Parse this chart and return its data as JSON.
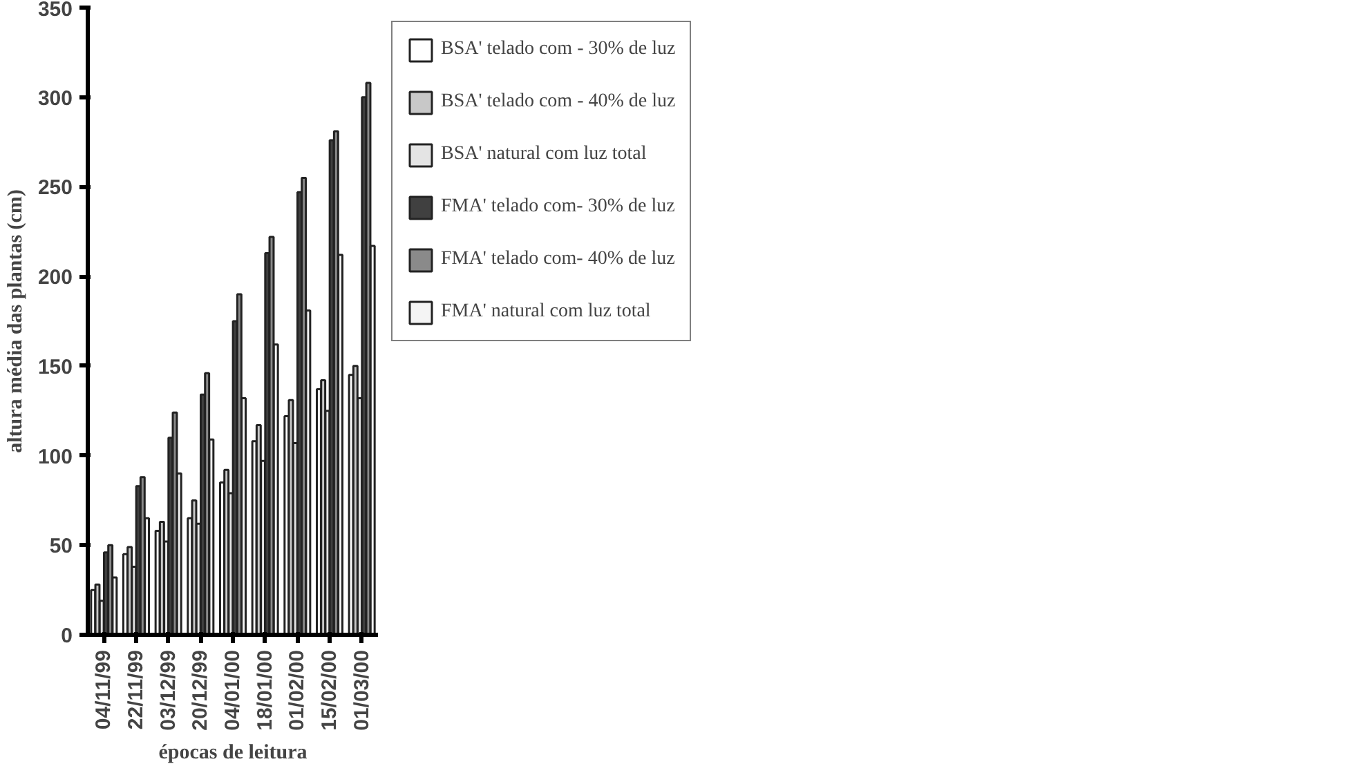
{
  "chart_data": {
    "type": "bar",
    "xlabel": "épocas de leitura",
    "ylabel": "altura média das plantas (cm)",
    "categories": [
      "04/11/99",
      "22/11/99",
      "03/12/99",
      "20/12/99",
      "04/01/00",
      "18/01/00",
      "01/02/00",
      "15/02/00",
      "01/03/00"
    ],
    "series": [
      {
        "name": "BSA' telado com - 30% de luz",
        "color": "#ffffff",
        "values": [
          25,
          45,
          58,
          65,
          85,
          108,
          122,
          137,
          145
        ]
      },
      {
        "name": "BSA' telado com - 40% de luz",
        "color": "#c8c8c8",
        "values": [
          28,
          49,
          63,
          75,
          92,
          117,
          131,
          142,
          150
        ]
      },
      {
        "name": "BSA' natural com luz total",
        "color": "#e4e4e4",
        "values": [
          19,
          38,
          52,
          62,
          79,
          97,
          107,
          125,
          132
        ]
      },
      {
        "name": "FMA' telado com- 30% de luz",
        "color": "#404040",
        "values": [
          46,
          83,
          110,
          134,
          175,
          213,
          247,
          276,
          300
        ]
      },
      {
        "name": "FMA' telado com- 40% de luz",
        "color": "#8a8a8a",
        "values": [
          50,
          88,
          124,
          146,
          190,
          222,
          255,
          281,
          308
        ]
      },
      {
        "name": "FMA' natural com luz total",
        "color": "#f4f4f4",
        "values": [
          32,
          65,
          90,
          109,
          132,
          162,
          181,
          212,
          217
        ]
      }
    ],
    "ylim": [
      0,
      350
    ],
    "yticks": [
      0,
      50,
      100,
      150,
      200,
      250,
      300,
      350
    ],
    "grid": false,
    "legend": "right"
  }
}
